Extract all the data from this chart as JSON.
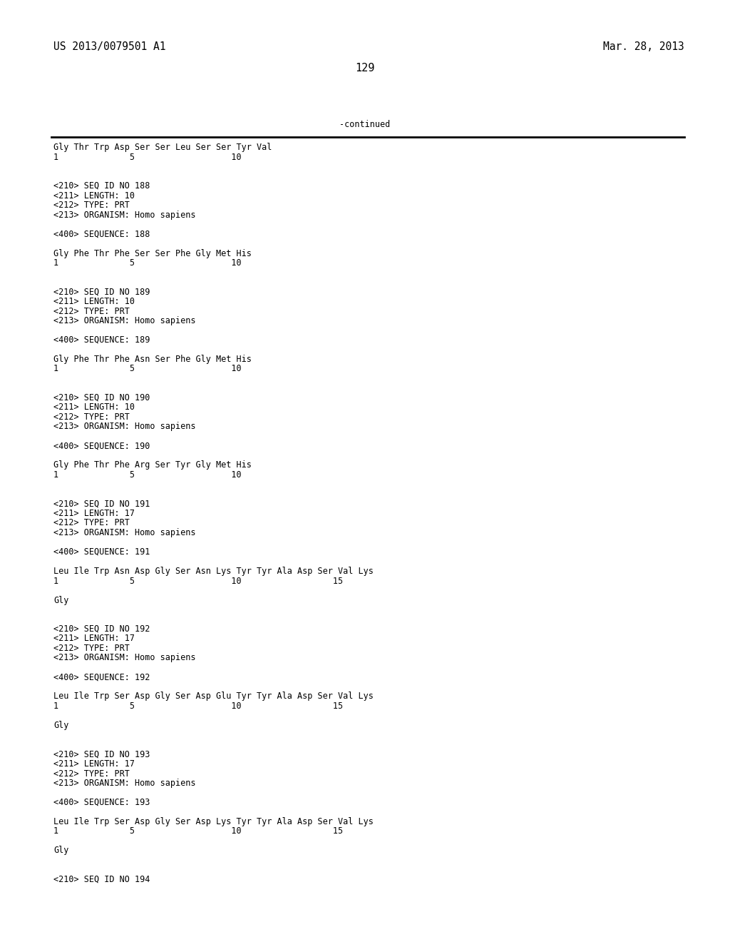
{
  "header_left": "US 2013/0079501 A1",
  "header_right": "Mar. 28, 2013",
  "page_number": "129",
  "continued_label": "-continued",
  "background_color": "#ffffff",
  "text_color": "#000000",
  "font_size": 8.5,
  "header_font_size": 10.5,
  "page_num_font_size": 11,
  "lines": [
    "Gly Thr Trp Asp Ser Ser Leu Ser Ser Tyr Val",
    "1              5                   10",
    "",
    "",
    "<210> SEQ ID NO 188",
    "<211> LENGTH: 10",
    "<212> TYPE: PRT",
    "<213> ORGANISM: Homo sapiens",
    "",
    "<400> SEQUENCE: 188",
    "",
    "Gly Phe Thr Phe Ser Ser Phe Gly Met His",
    "1              5                   10",
    "",
    "",
    "<210> SEQ ID NO 189",
    "<211> LENGTH: 10",
    "<212> TYPE: PRT",
    "<213> ORGANISM: Homo sapiens",
    "",
    "<400> SEQUENCE: 189",
    "",
    "Gly Phe Thr Phe Asn Ser Phe Gly Met His",
    "1              5                   10",
    "",
    "",
    "<210> SEQ ID NO 190",
    "<211> LENGTH: 10",
    "<212> TYPE: PRT",
    "<213> ORGANISM: Homo sapiens",
    "",
    "<400> SEQUENCE: 190",
    "",
    "Gly Phe Thr Phe Arg Ser Tyr Gly Met His",
    "1              5                   10",
    "",
    "",
    "<210> SEQ ID NO 191",
    "<211> LENGTH: 17",
    "<212> TYPE: PRT",
    "<213> ORGANISM: Homo sapiens",
    "",
    "<400> SEQUENCE: 191",
    "",
    "Leu Ile Trp Asn Asp Gly Ser Asn Lys Tyr Tyr Ala Asp Ser Val Lys",
    "1              5                   10                  15",
    "",
    "Gly",
    "",
    "",
    "<210> SEQ ID NO 192",
    "<211> LENGTH: 17",
    "<212> TYPE: PRT",
    "<213> ORGANISM: Homo sapiens",
    "",
    "<400> SEQUENCE: 192",
    "",
    "Leu Ile Trp Ser Asp Gly Ser Asp Glu Tyr Tyr Ala Asp Ser Val Lys",
    "1              5                   10                  15",
    "",
    "Gly",
    "",
    "",
    "<210> SEQ ID NO 193",
    "<211> LENGTH: 17",
    "<212> TYPE: PRT",
    "<213> ORGANISM: Homo sapiens",
    "",
    "<400> SEQUENCE: 193",
    "",
    "Leu Ile Trp Ser Asp Gly Ser Asp Lys Tyr Tyr Ala Asp Ser Val Lys",
    "1              5                   10                  15",
    "",
    "Gly",
    "",
    "",
    "<210> SEQ ID NO 194"
  ]
}
